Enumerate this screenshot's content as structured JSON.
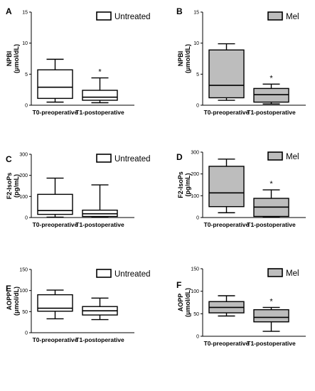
{
  "chart_data": [
    {
      "panel": "A",
      "type": "boxplot",
      "ylabel": "NPBI",
      "yunit": "(μmol/dL)",
      "ylim": [
        0,
        15
      ],
      "yticks": [
        0,
        5,
        10,
        15
      ],
      "categories": [
        "T0-preoperative",
        "T1-postoperative"
      ],
      "legend": "Untreated",
      "fill": "#ffffff",
      "boxes": [
        {
          "min": 0.5,
          "q1": 1.1,
          "median": 2.9,
          "q3": 5.7,
          "max": 7.4,
          "star": ""
        },
        {
          "min": 0.4,
          "q1": 0.8,
          "median": 1.3,
          "q3": 2.4,
          "max": 4.4,
          "star": "*"
        }
      ]
    },
    {
      "panel": "B",
      "type": "boxplot",
      "ylabel": "NPBI",
      "yunit": "(μmol/dL)",
      "ylim": [
        0,
        15
      ],
      "yticks": [
        0,
        5,
        10,
        15
      ],
      "categories": [
        "T0-preoperative",
        "T1-postoperative"
      ],
      "legend": "Mel",
      "fill": "#bdbdbd",
      "boxes": [
        {
          "min": 0.8,
          "q1": 1.2,
          "median": 3.2,
          "q3": 8.9,
          "max": 9.9,
          "star": ""
        },
        {
          "min": 0.2,
          "q1": 0.5,
          "median": 1.7,
          "q3": 2.7,
          "max": 3.4,
          "star": "*"
        }
      ]
    },
    {
      "panel": "C",
      "type": "boxplot",
      "ylabel": "F2-IsoPs",
      "yunit": "(pg/mL)",
      "ylim": [
        0,
        300
      ],
      "yticks": [
        0,
        100,
        200,
        300
      ],
      "categories": [
        "T0-preoperative",
        "T1-postoperative"
      ],
      "legend": "Untreated",
      "fill": "#ffffff",
      "boxes": [
        {
          "min": 2,
          "q1": 15,
          "median": 33,
          "q3": 110,
          "max": 187,
          "star": ""
        },
        {
          "min": 1,
          "q1": 5,
          "median": 18,
          "q3": 35,
          "max": 155,
          "star": ""
        }
      ]
    },
    {
      "panel": "D",
      "type": "boxplot",
      "ylabel": "F2-IsoPs",
      "yunit": "(pg/mL)",
      "ylim": [
        0,
        300
      ],
      "yticks": [
        0,
        100,
        200,
        300
      ],
      "categories": [
        "T0-preoperative",
        "T1-postoperative"
      ],
      "legend": "Mel",
      "fill": "#bdbdbd",
      "boxes": [
        {
          "min": 22,
          "q1": 50,
          "median": 113,
          "q3": 235,
          "max": 268,
          "star": ""
        },
        {
          "min": 2,
          "q1": 5,
          "median": 48,
          "q3": 88,
          "max": 127,
          "star": "*"
        }
      ]
    },
    {
      "panel": "E",
      "type": "boxplot",
      "ylabel": "AOPP",
      "yunit": "(μmol/dL)",
      "ylim": [
        0,
        150
      ],
      "yticks": [
        0,
        50,
        100,
        150
      ],
      "categories": [
        "T0-preoperative",
        "T1-postoperative"
      ],
      "legend": "Untreated",
      "fill": "#ffffff",
      "boxes": [
        {
          "min": 33,
          "q1": 51,
          "median": 58,
          "q3": 90,
          "max": 101,
          "star": ""
        },
        {
          "min": 31,
          "q1": 42,
          "median": 52,
          "q3": 62,
          "max": 82,
          "star": ""
        }
      ]
    },
    {
      "panel": "F",
      "type": "boxplot",
      "ylabel": "AOPP",
      "yunit": "(μmol/dL)",
      "ylim": [
        0,
        150
      ],
      "yticks": [
        0,
        50,
        100,
        150
      ],
      "categories": [
        "T0-preoperative",
        "T1-postoperative"
      ],
      "legend": "Mel",
      "fill": "#bdbdbd",
      "boxes": [
        {
          "min": 45,
          "q1": 52,
          "median": 64,
          "q3": 77,
          "max": 90,
          "star": ""
        },
        {
          "min": 11,
          "q1": 32,
          "median": 42,
          "q3": 59,
          "max": 64,
          "star": "*"
        }
      ]
    }
  ]
}
